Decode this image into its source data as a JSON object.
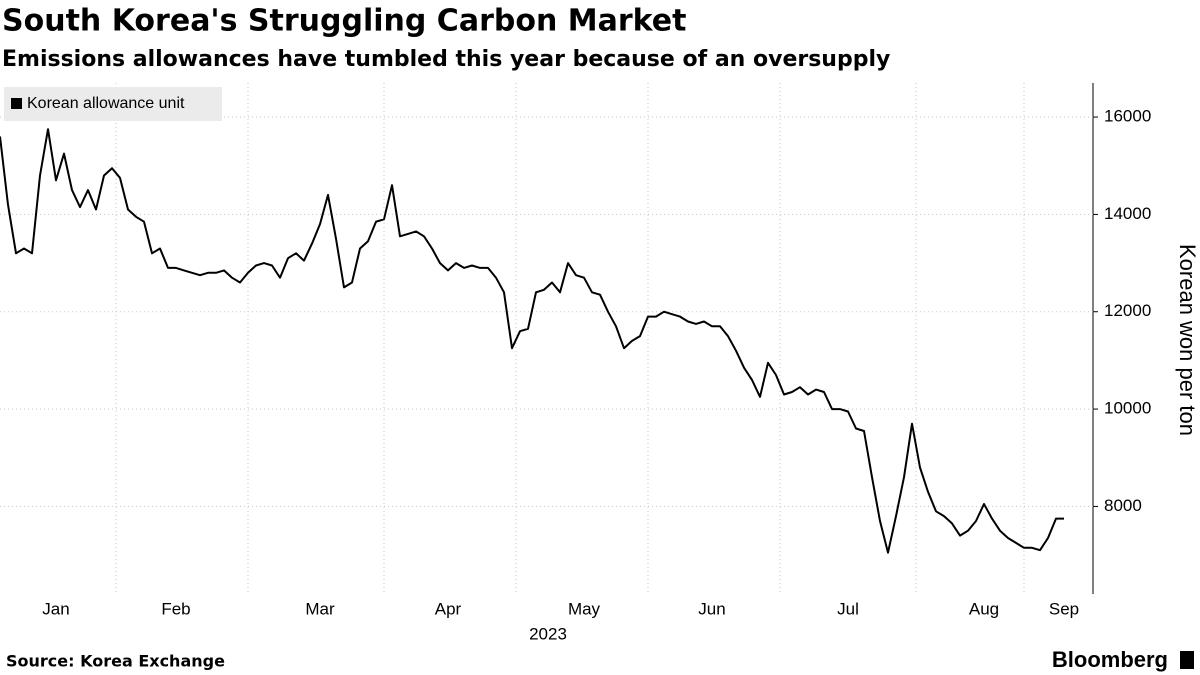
{
  "chart_data": {
    "type": "line",
    "title": "South Korea's Struggling Carbon Market",
    "subtitle": "Emissions allowances have tumbled this year because of an oversupply",
    "xlabel": "2023",
    "ylabel": "Korean won per ton",
    "source": "Source: Korea Exchange",
    "brand": "Bloomberg",
    "categories": [
      null,
      null,
      null,
      null,
      null,
      null,
      null,
      "Jan",
      null,
      null,
      null,
      null,
      null,
      null,
      null,
      null,
      null,
      null,
      null,
      null,
      null,
      null,
      "Feb",
      null,
      null,
      null,
      null,
      null,
      null,
      null,
      null,
      null,
      null,
      null,
      null,
      null,
      null,
      null,
      null,
      null,
      "Mar",
      null,
      null,
      null,
      null,
      null,
      null,
      null,
      null,
      null,
      null,
      null,
      null,
      null,
      null,
      null,
      "Apr",
      null,
      null,
      null,
      null,
      null,
      null,
      null,
      null,
      null,
      null,
      null,
      null,
      null,
      null,
      null,
      null,
      "May",
      null,
      null,
      null,
      null,
      null,
      null,
      null,
      null,
      null,
      null,
      null,
      null,
      null,
      null,
      null,
      "Jun",
      null,
      null,
      null,
      null,
      null,
      null,
      null,
      null,
      null,
      null,
      null,
      null,
      null,
      null,
      null,
      null,
      "Jul",
      null,
      null,
      null,
      null,
      null,
      null,
      null,
      null,
      null,
      null,
      null,
      null,
      null,
      null,
      null,
      null,
      "Aug",
      null,
      null,
      null,
      null,
      null,
      null,
      null,
      null,
      null,
      "Sep"
    ],
    "series": [
      {
        "name": "Korean allowance unit",
        "color": "#000000",
        "values": [
          15600,
          14200,
          13200,
          13300,
          13200,
          14800,
          15750,
          14700,
          15250,
          14500,
          14150,
          14500,
          14100,
          14800,
          14950,
          14750,
          14100,
          13950,
          13850,
          13200,
          13300,
          12900,
          12900,
          12850,
          12800,
          12750,
          12800,
          12800,
          12850,
          12700,
          12600,
          12800,
          12950,
          13000,
          12950,
          12700,
          13100,
          13200,
          13050,
          13400,
          13800,
          14400,
          13500,
          12500,
          12600,
          13300,
          13450,
          13850,
          13900,
          14600,
          13550,
          13600,
          13650,
          13550,
          13300,
          13000,
          12850,
          13000,
          12900,
          12950,
          12900,
          12900,
          12700,
          12400,
          11250,
          11600,
          11650,
          12400,
          12450,
          12600,
          12400,
          13000,
          12750,
          12700,
          12400,
          12350,
          12000,
          11700,
          11250,
          11400,
          11500,
          11900,
          11900,
          12000,
          11950,
          11900,
          11800,
          11750,
          11800,
          11700,
          11700,
          11500,
          11200,
          10850,
          10600,
          10250,
          10950,
          10700,
          10300,
          10350,
          10450,
          10300,
          10400,
          10350,
          10000,
          10000,
          9950,
          9600,
          9550,
          8600,
          7700,
          7050,
          7800,
          8600,
          9700,
          8800,
          8300,
          7900,
          7800,
          7650,
          7400,
          7500,
          7700,
          8050,
          7750,
          7500,
          7350,
          7250,
          7150,
          7150,
          7100,
          7350,
          7750,
          7750
        ]
      }
    ],
    "ylim": [
      6200,
      16700
    ],
    "yticks": [
      8000,
      10000,
      12000,
      14000,
      16000
    ],
    "grid": true,
    "legend": "top-left"
  }
}
